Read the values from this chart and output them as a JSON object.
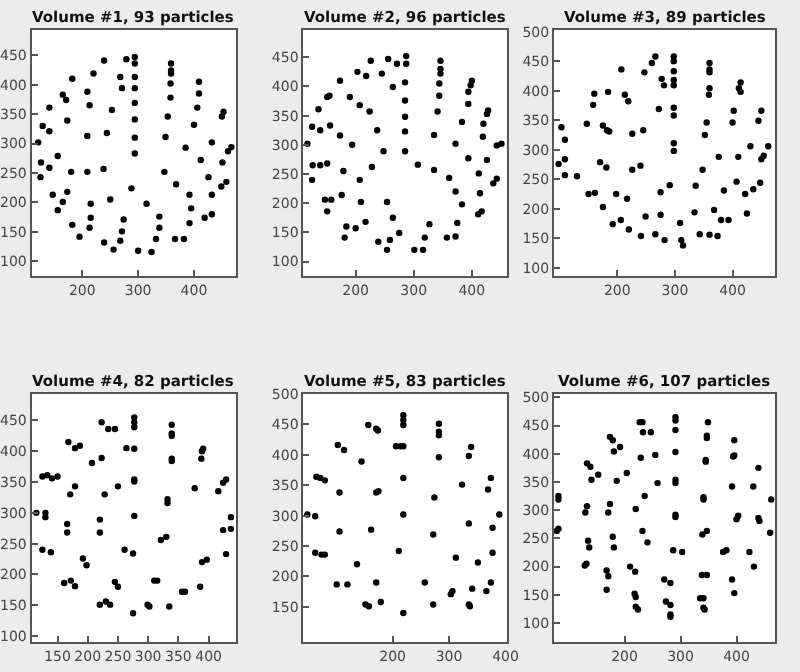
{
  "chart_data": [
    {
      "type": "scatter",
      "title": "Volume #1, 93 particles",
      "color": "#000000",
      "marker": "circle",
      "xlim": [
        109,
        476
      ],
      "ylim": [
        75,
        493
      ],
      "xticks": [
        200,
        300,
        400
      ],
      "yticks": [
        100,
        150,
        200,
        250,
        300,
        350,
        400,
        450
      ],
      "x": [
        239,
        279,
        294,
        294,
        359,
        359,
        359,
        182,
        220,
        268,
        271,
        294,
        294,
        409,
        409,
        358,
        165,
        171,
        209,
        213,
        141,
        253,
        294,
        358,
        406,
        453,
        450,
        129,
        141,
        173,
        294,
        353,
        400,
        121,
        209,
        244,
        294,
        349,
        385,
        432,
        467,
        461,
        156,
        412,
        451,
        126,
        141,
        125,
        180,
        209,
        238,
        294,
        347,
        368,
        426,
        458,
        449,
        147,
        173,
        165,
        156,
        215,
        250,
        288,
        315,
        392,
        432,
        338,
        338,
        395,
        419,
        432,
        392,
        182,
        215,
        213,
        195,
        274,
        271,
        268,
        239,
        256,
        300,
        324,
        332,
        366,
        382
      ],
      "values": [
        441,
        443,
        447,
        436,
        436,
        424,
        419,
        410,
        419,
        413,
        394,
        413,
        394,
        405,
        385,
        402,
        383,
        374,
        388,
        365,
        361,
        357,
        369,
        378,
        361,
        354,
        346,
        330,
        321,
        339,
        341,
        346,
        332,
        302,
        313,
        318,
        310,
        311,
        293,
        302,
        294,
        287,
        279,
        272,
        268,
        268,
        259,
        243,
        252,
        252,
        257,
        283,
        252,
        231,
        243,
        235,
        227,
        213,
        218,
        201,
        187,
        198,
        205,
        224,
        198,
        213,
        213,
        176,
        157,
        190,
        174,
        180,
        165,
        162,
        174,
        157,
        142,
        171,
        151,
        135,
        132,
        120,
        118,
        116,
        138,
        138,
        138
      ]
    },
    {
      "type": "scatter",
      "title": "Volume #2, 96 particles",
      "color": "#000000",
      "marker": "circle",
      "xlim": [
        110,
        460
      ],
      "ylim": [
        75,
        497
      ],
      "xticks": [
        200,
        300,
        400
      ],
      "yticks": [
        100,
        150,
        200,
        250,
        300,
        350,
        400,
        450
      ],
      "x": [
        226,
        256,
        271,
        287,
        287,
        346,
        346,
        346,
        203,
        218,
        173,
        245,
        264,
        285,
        285,
        344,
        344,
        400,
        398,
        394,
        394,
        155,
        151,
        190,
        207,
        224,
        136,
        285,
        341,
        383,
        428,
        426,
        420,
        125,
        139,
        156,
        173,
        237,
        285,
        335,
        372,
        419,
        443,
        451,
        117,
        194,
        248,
        285,
        394,
        426,
        126,
        139,
        151,
        125,
        179,
        207,
        228,
        307,
        335,
        361,
        412,
        437,
        443,
        147,
        158,
        176,
        151,
        209,
        254,
        264,
        275,
        372,
        383,
        411,
        417,
        414,
        184,
        200,
        217,
        181,
        239,
        254,
        259,
        301,
        316,
        319,
        327,
        357,
        372,
        375
      ],
      "values": [
        444,
        447,
        439,
        452,
        439,
        444,
        430,
        422,
        425,
        418,
        410,
        422,
        399,
        407,
        376,
        405,
        384,
        410,
        402,
        391,
        370,
        384,
        382,
        382,
        368,
        357,
        361,
        348,
        357,
        339,
        359,
        353,
        336,
        331,
        325,
        333,
        316,
        325,
        323,
        317,
        302,
        314,
        299,
        302,
        302,
        300,
        289,
        289,
        277,
        274,
        265,
        265,
        268,
        240,
        255,
        240,
        262,
        266,
        257,
        243,
        251,
        234,
        242,
        206,
        206,
        214,
        186,
        202,
        202,
        175,
        149,
        220,
        198,
        181,
        186,
        217,
        160,
        157,
        168,
        141,
        134,
        120,
        137,
        120,
        120,
        141,
        164,
        141,
        143,
        166
      ]
    },
    {
      "type": "scatter",
      "title": "Volume #3, 89 particles",
      "color": "#000000",
      "marker": "circle",
      "xlim": [
        90,
        473
      ],
      "ylim": [
        86,
        503
      ],
      "xticks": [
        200,
        300,
        400
      ],
      "yticks": [
        100,
        150,
        200,
        250,
        300,
        350,
        400,
        450,
        500
      ],
      "x": [
        260,
        266,
        298,
        298,
        298,
        360,
        360,
        360,
        207,
        247,
        277,
        281,
        298,
        298,
        414,
        411,
        414,
        160,
        184,
        213,
        219,
        158,
        298,
        298,
        272,
        360,
        359,
        402,
        450,
        445,
        147,
        355,
        400,
        103,
        175,
        182,
        186,
        245,
        226,
        109,
        298,
        298,
        352,
        462,
        431,
        109,
        98,
        170,
        181,
        240,
        226,
        109,
        376,
        410,
        450,
        454,
        348,
        130,
        150,
        161,
        198,
        217,
        175,
        275,
        291,
        336,
        385,
        407,
        422,
        436,
        448,
        334,
        368,
        393,
        380,
        425,
        192,
        206,
        220,
        249,
        275,
        241,
        266,
        282,
        311,
        309,
        314,
        343,
        360,
        374
      ],
      "values": [
        447,
        458,
        433,
        458,
        450,
        447,
        436,
        431,
        436,
        431,
        420,
        409,
        418,
        409,
        414,
        404,
        398,
        395,
        398,
        393,
        382,
        376,
        371,
        358,
        369,
        404,
        393,
        366,
        366,
        349,
        344,
        346,
        346,
        338,
        341,
        333,
        331,
        333,
        327,
        317,
        311,
        298,
        325,
        306,
        306,
        284,
        276,
        279,
        270,
        273,
        266,
        257,
        288,
        288,
        284,
        290,
        266,
        255,
        225,
        227,
        225,
        217,
        203,
        228,
        240,
        239,
        231,
        246,
        225,
        233,
        244,
        194,
        198,
        181,
        181,
        192,
        174,
        181,
        165,
        187,
        190,
        154,
        157,
        147,
        147,
        176,
        138,
        157,
        156,
        154
      ]
    },
    {
      "type": "scatter",
      "title": "Volume #4, 82 particles",
      "color": "#000000",
      "marker": "circle",
      "xlim": [
        107,
        446
      ],
      "ylim": [
        90,
        493
      ],
      "xticks": [
        150,
        200,
        250,
        300,
        350,
        400
      ],
      "yticks": [
        100,
        150,
        200,
        250,
        300,
        350,
        400,
        450
      ],
      "x": [
        223,
        234,
        245,
        277,
        277,
        277,
        339,
        339,
        339,
        168,
        179,
        187,
        223,
        207,
        264,
        277,
        339,
        339,
        391,
        389,
        388,
        133,
        141,
        150,
        125,
        171,
        179,
        228,
        277,
        277,
        250,
        377,
        416,
        429,
        424,
        115,
        130,
        130,
        166,
        166,
        220,
        220,
        277,
        332,
        332,
        261,
        275,
        321,
        330,
        389,
        397,
        429,
        437,
        424,
        437,
        125,
        139,
        192,
        198,
        161,
        172,
        179,
        245,
        250,
        310,
        315,
        220,
        230,
        237,
        299,
        302,
        275,
        335,
        356,
        361,
        386
      ],
      "values": [
        447,
        436,
        436,
        455,
        447,
        439,
        443,
        429,
        425,
        415,
        405,
        409,
        389,
        381,
        405,
        404,
        388,
        384,
        404,
        400,
        388,
        361,
        356,
        359,
        359,
        330,
        343,
        330,
        354,
        351,
        343,
        340,
        335,
        354,
        349,
        300,
        300,
        293,
        282,
        268,
        289,
        268,
        295,
        322,
        316,
        240,
        234,
        256,
        261,
        220,
        224,
        233,
        274,
        272,
        293,
        240,
        236,
        226,
        215,
        186,
        190,
        181,
        188,
        180,
        190,
        190,
        151,
        156,
        151,
        151,
        148,
        137,
        148,
        172,
        172,
        180
      ]
    },
    {
      "type": "scatter",
      "title": "Volume #5, 83 particles",
      "color": "#000000",
      "marker": "circle",
      "xlim": [
        42,
        402
      ],
      "ylim": [
        92,
        500
      ],
      "xticks": [
        200,
        300,
        400
      ],
      "yticks": [
        150,
        200,
        250,
        300,
        350,
        400,
        450,
        500
      ],
      "x": [
        157,
        171,
        174,
        219,
        219,
        219,
        282,
        282,
        282,
        206,
        214,
        219,
        103,
        114,
        145,
        282,
        339,
        335,
        65,
        72,
        80,
        106,
        171,
        175,
        219,
        274,
        323,
        369,
        374,
        49,
        63,
        106,
        162,
        219,
        272,
        335,
        377,
        389,
        63,
        74,
        80,
        211,
        137,
        312,
        351,
        377,
        101,
        120,
        171,
        257,
        303,
        306,
        341,
        366,
        152,
        158,
        179,
        219,
        272,
        335,
        337,
        374
      ],
      "values": [
        449,
        443,
        440,
        465,
        457,
        449,
        451,
        438,
        432,
        414,
        414,
        414,
        416,
        408,
        389,
        396,
        413,
        398,
        364,
        362,
        358,
        338,
        338,
        340,
        362,
        330,
        351,
        343,
        362,
        302,
        299,
        274,
        277,
        302,
        269,
        287,
        280,
        302,
        239,
        236,
        236,
        242,
        220,
        231,
        223,
        239,
        187,
        187,
        190,
        190,
        171,
        176,
        180,
        176,
        154,
        151,
        158,
        140,
        154,
        154,
        151,
        190
      ]
    },
    {
      "type": "scatter",
      "title": "Volume #6, 107 particles",
      "color": "#000000",
      "marker": "circle",
      "xlim": [
        74,
        468
      ],
      "ylim": [
        66,
        506
      ],
      "xticks": [
        200,
        300,
        400
      ],
      "yticks": [
        100,
        150,
        200,
        250,
        300,
        350,
        400,
        450,
        500
      ],
      "x": [
        227,
        232,
        233,
        247,
        291,
        291,
        291,
        349,
        347,
        347,
        174,
        179,
        192,
        181,
        229,
        255,
        291,
        345,
        345,
        396,
        394,
        396,
        439,
        430,
        133,
        139,
        141,
        153,
        204,
        186,
        259,
        291,
        291,
        341,
        341,
        392,
        462,
        82,
        82,
        133,
        130,
        171,
        174,
        236,
        220,
        291,
        291,
        339,
        347,
        400,
        403,
        439,
        441,
        460,
        79,
        82,
        135,
        137,
        179,
        181,
        232,
        241,
        287,
        303,
        376,
        382,
        423,
        431,
        132,
        129,
        168,
        171,
        210,
        219,
        271,
        282,
        338,
        347,
        392,
        396,
        168,
        218,
        220,
        220,
        224,
        274,
        282,
        282,
        282,
        335,
        341,
        341,
        343
      ],
      "values": [
        456,
        456,
        438,
        438,
        465,
        459,
        442,
        456,
        432,
        428,
        430,
        424,
        412,
        404,
        393,
        398,
        403,
        389,
        386,
        424,
        395,
        397,
        375,
        342,
        383,
        377,
        354,
        363,
        366,
        352,
        348,
        354,
        348,
        323,
        319,
        342,
        319,
        325,
        319,
        307,
        296,
        296,
        311,
        325,
        302,
        292,
        288,
        257,
        263,
        284,
        290,
        286,
        281,
        260,
        263,
        267,
        246,
        234,
        253,
        234,
        263,
        243,
        229,
        226,
        226,
        229,
        226,
        200,
        205,
        202,
        193,
        183,
        200,
        191,
        177,
        171,
        185,
        185,
        177,
        153,
        159,
        152,
        146,
        129,
        124,
        138,
        132,
        115,
        111,
        144,
        144,
        127,
        124
      ]
    }
  ]
}
